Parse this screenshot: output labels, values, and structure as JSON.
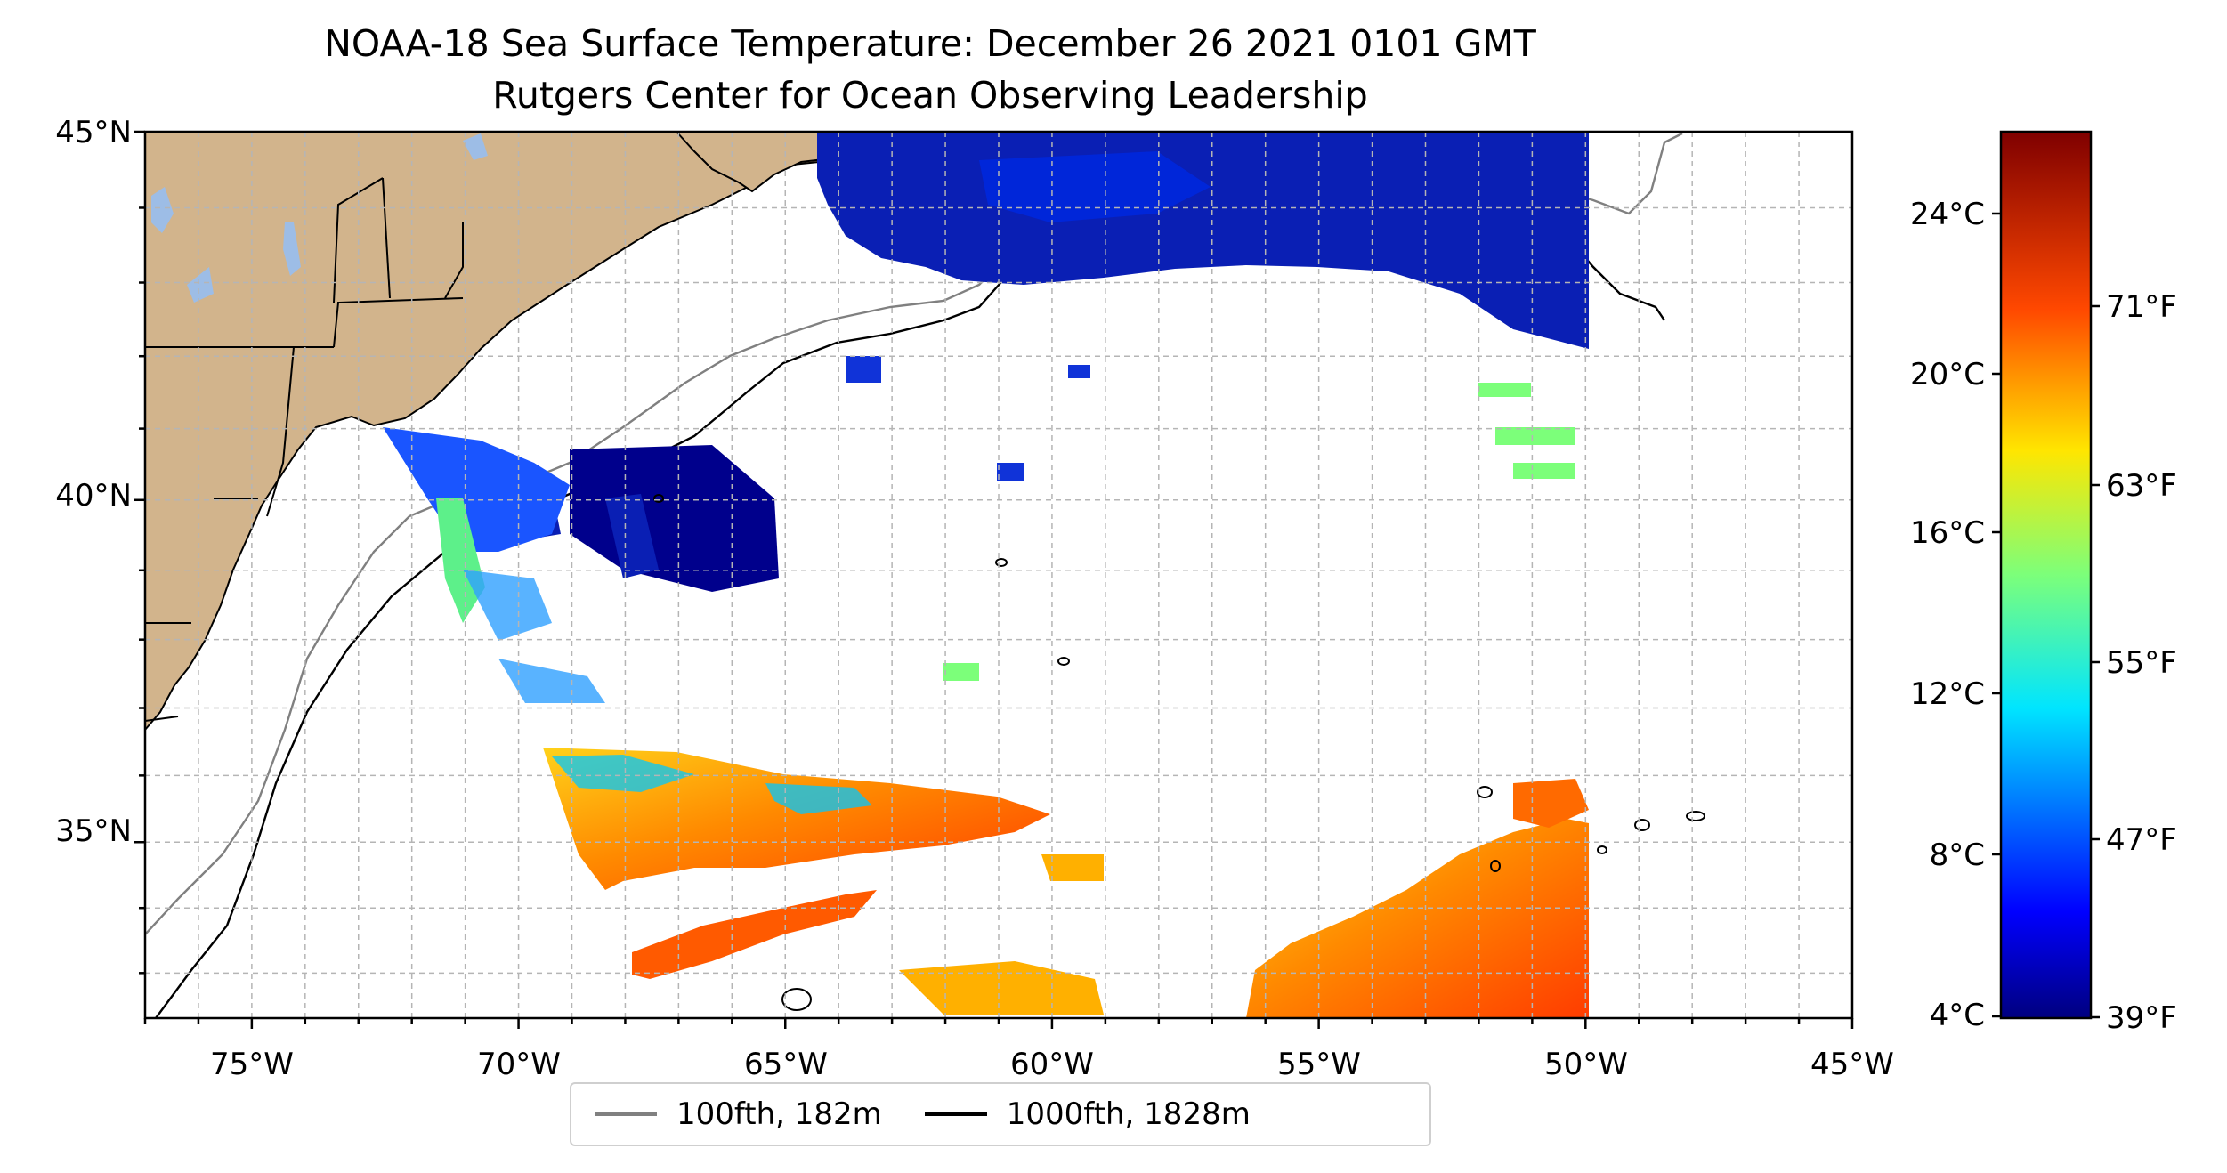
{
  "title": "NOAA-18 Sea Surface Temperature: December 26 2021 0101 GMT",
  "subtitle": "Rutgers Center for Ocean Observing Leadership",
  "map": {
    "lon_range": [
      -77,
      -45
    ],
    "lat_range": [
      32.3,
      45
    ],
    "lon_ticks": [
      "75°W",
      "70°W",
      "65°W",
      "60°W",
      "55°W",
      "50°W",
      "45°W"
    ],
    "lat_ticks": [
      "45°N",
      "40°N",
      "35°N"
    ],
    "grid": "dashed gray, 1-degree",
    "land_color": "#d2b48c",
    "water_color": "#9dbde6",
    "coastline_color": "#000000"
  },
  "colorbar": {
    "colormap": "jet",
    "celsius_labels": [
      "24°C",
      "20°C",
      "16°C",
      "12°C",
      "8°C",
      "4°C"
    ],
    "fahrenheit_labels": [
      "71°F",
      "63°F",
      "55°F",
      "47°F",
      "39°F"
    ]
  },
  "legend": {
    "items": [
      {
        "label": "100fth, 182m",
        "color": "#808080"
      },
      {
        "label": "1000fth, 1828m",
        "color": "#000000"
      }
    ]
  }
}
